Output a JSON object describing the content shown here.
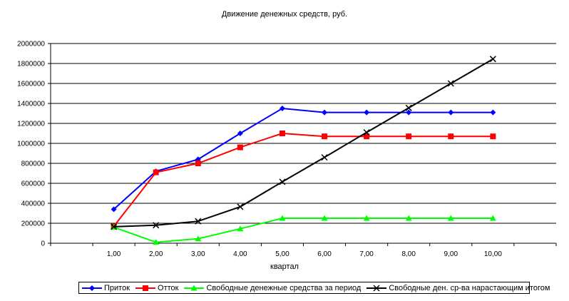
{
  "chart_data": {
    "type": "line",
    "title": "Движение денежных средств, руб.",
    "xlabel": "квартал",
    "ylabel": "",
    "categories": [
      "1,00",
      "2,00",
      "3,00",
      "4,00",
      "5,00",
      "6,00",
      "7,00",
      "8,00",
      "9,00",
      "10,00"
    ],
    "ylim": [
      0,
      2000000
    ],
    "yticks": [
      "0",
      "200000",
      "400000",
      "600000",
      "800000",
      "1000000",
      "1200000",
      "1400000",
      "1600000",
      "1800000",
      "2000000"
    ],
    "grid": true,
    "legend_position": "bottom",
    "series": [
      {
        "name": "Приток",
        "color": "#0000ff",
        "marker": "diamond",
        "values": [
          340000,
          720000,
          840000,
          1100000,
          1350000,
          1310000,
          1310000,
          1310000,
          1310000,
          1310000
        ]
      },
      {
        "name": "Отток",
        "color": "#ff0000",
        "marker": "square",
        "values": [
          170000,
          710000,
          800000,
          960000,
          1100000,
          1070000,
          1070000,
          1070000,
          1070000,
          1070000
        ]
      },
      {
        "name": "Свободные денежные средства за период",
        "color": "#00ff00",
        "marker": "triangle",
        "values": [
          160000,
          10000,
          45000,
          145000,
          250000,
          250000,
          250000,
          250000,
          250000,
          250000
        ]
      },
      {
        "name": "Свободные ден. ср-ва нарастающим итогом",
        "color": "#000000",
        "marker": "x",
        "values": [
          165000,
          180000,
          220000,
          365000,
          615000,
          860000,
          1110000,
          1355000,
          1600000,
          1845000
        ]
      }
    ]
  }
}
